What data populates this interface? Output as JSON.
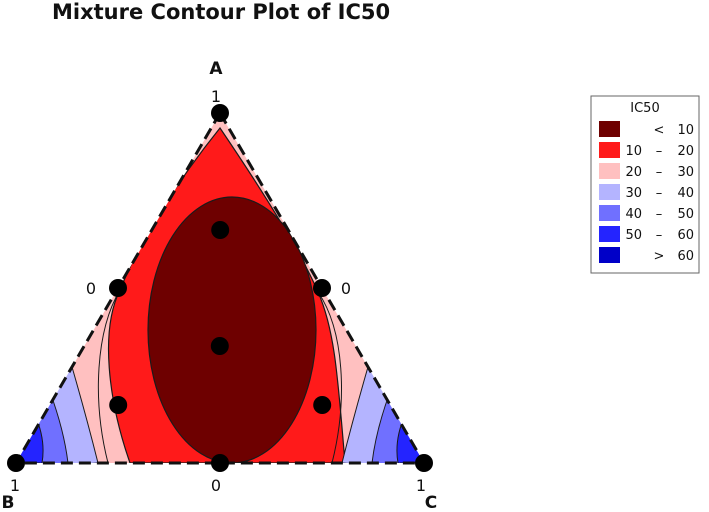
{
  "chart_data": {
    "type": "ternary-contour",
    "title": "Mixture Contour Plot of IC50",
    "vertices": [
      {
        "name": "A",
        "apex_label": "1",
        "low_label": "0"
      },
      {
        "name": "B",
        "apex_label": "1",
        "low_label": "0"
      },
      {
        "name": "C",
        "apex_label": "1",
        "low_label": "0"
      }
    ],
    "design_points": [
      {
        "A": 1,
        "B": 0,
        "C": 0
      },
      {
        "A": 0,
        "B": 1,
        "C": 0
      },
      {
        "A": 0,
        "B": 0,
        "C": 1
      },
      {
        "A": 0.5,
        "B": 0.5,
        "C": 0
      },
      {
        "A": 0.5,
        "B": 0,
        "C": 0.5
      },
      {
        "A": 0,
        "B": 0.5,
        "C": 0.5
      },
      {
        "A": 0.667,
        "B": 0.167,
        "C": 0.167
      },
      {
        "A": 0.167,
        "B": 0.667,
        "C": 0.167
      },
      {
        "A": 0.167,
        "B": 0.167,
        "C": 0.667
      },
      {
        "A": 0.333,
        "B": 0.333,
        "C": 0.333
      }
    ],
    "legend": {
      "title": "IC50",
      "placement": "right",
      "bins": [
        {
          "op": "<",
          "low": "",
          "high": "10",
          "color": "#6e0000"
        },
        {
          "op": "–",
          "low": "10",
          "high": "20",
          "color": "#ff1a1a"
        },
        {
          "op": "–",
          "low": "20",
          "high": "30",
          "color": "#ffc0c0"
        },
        {
          "op": "–",
          "low": "30",
          "high": "40",
          "color": "#b4b4ff"
        },
        {
          "op": "–",
          "low": "40",
          "high": "50",
          "color": "#7070ff"
        },
        {
          "op": "–",
          "low": "50",
          "high": "60",
          "color": "#2424ff"
        },
        {
          "op": ">",
          "low": "",
          "high": "60",
          "color": "#0000c8"
        }
      ]
    }
  }
}
